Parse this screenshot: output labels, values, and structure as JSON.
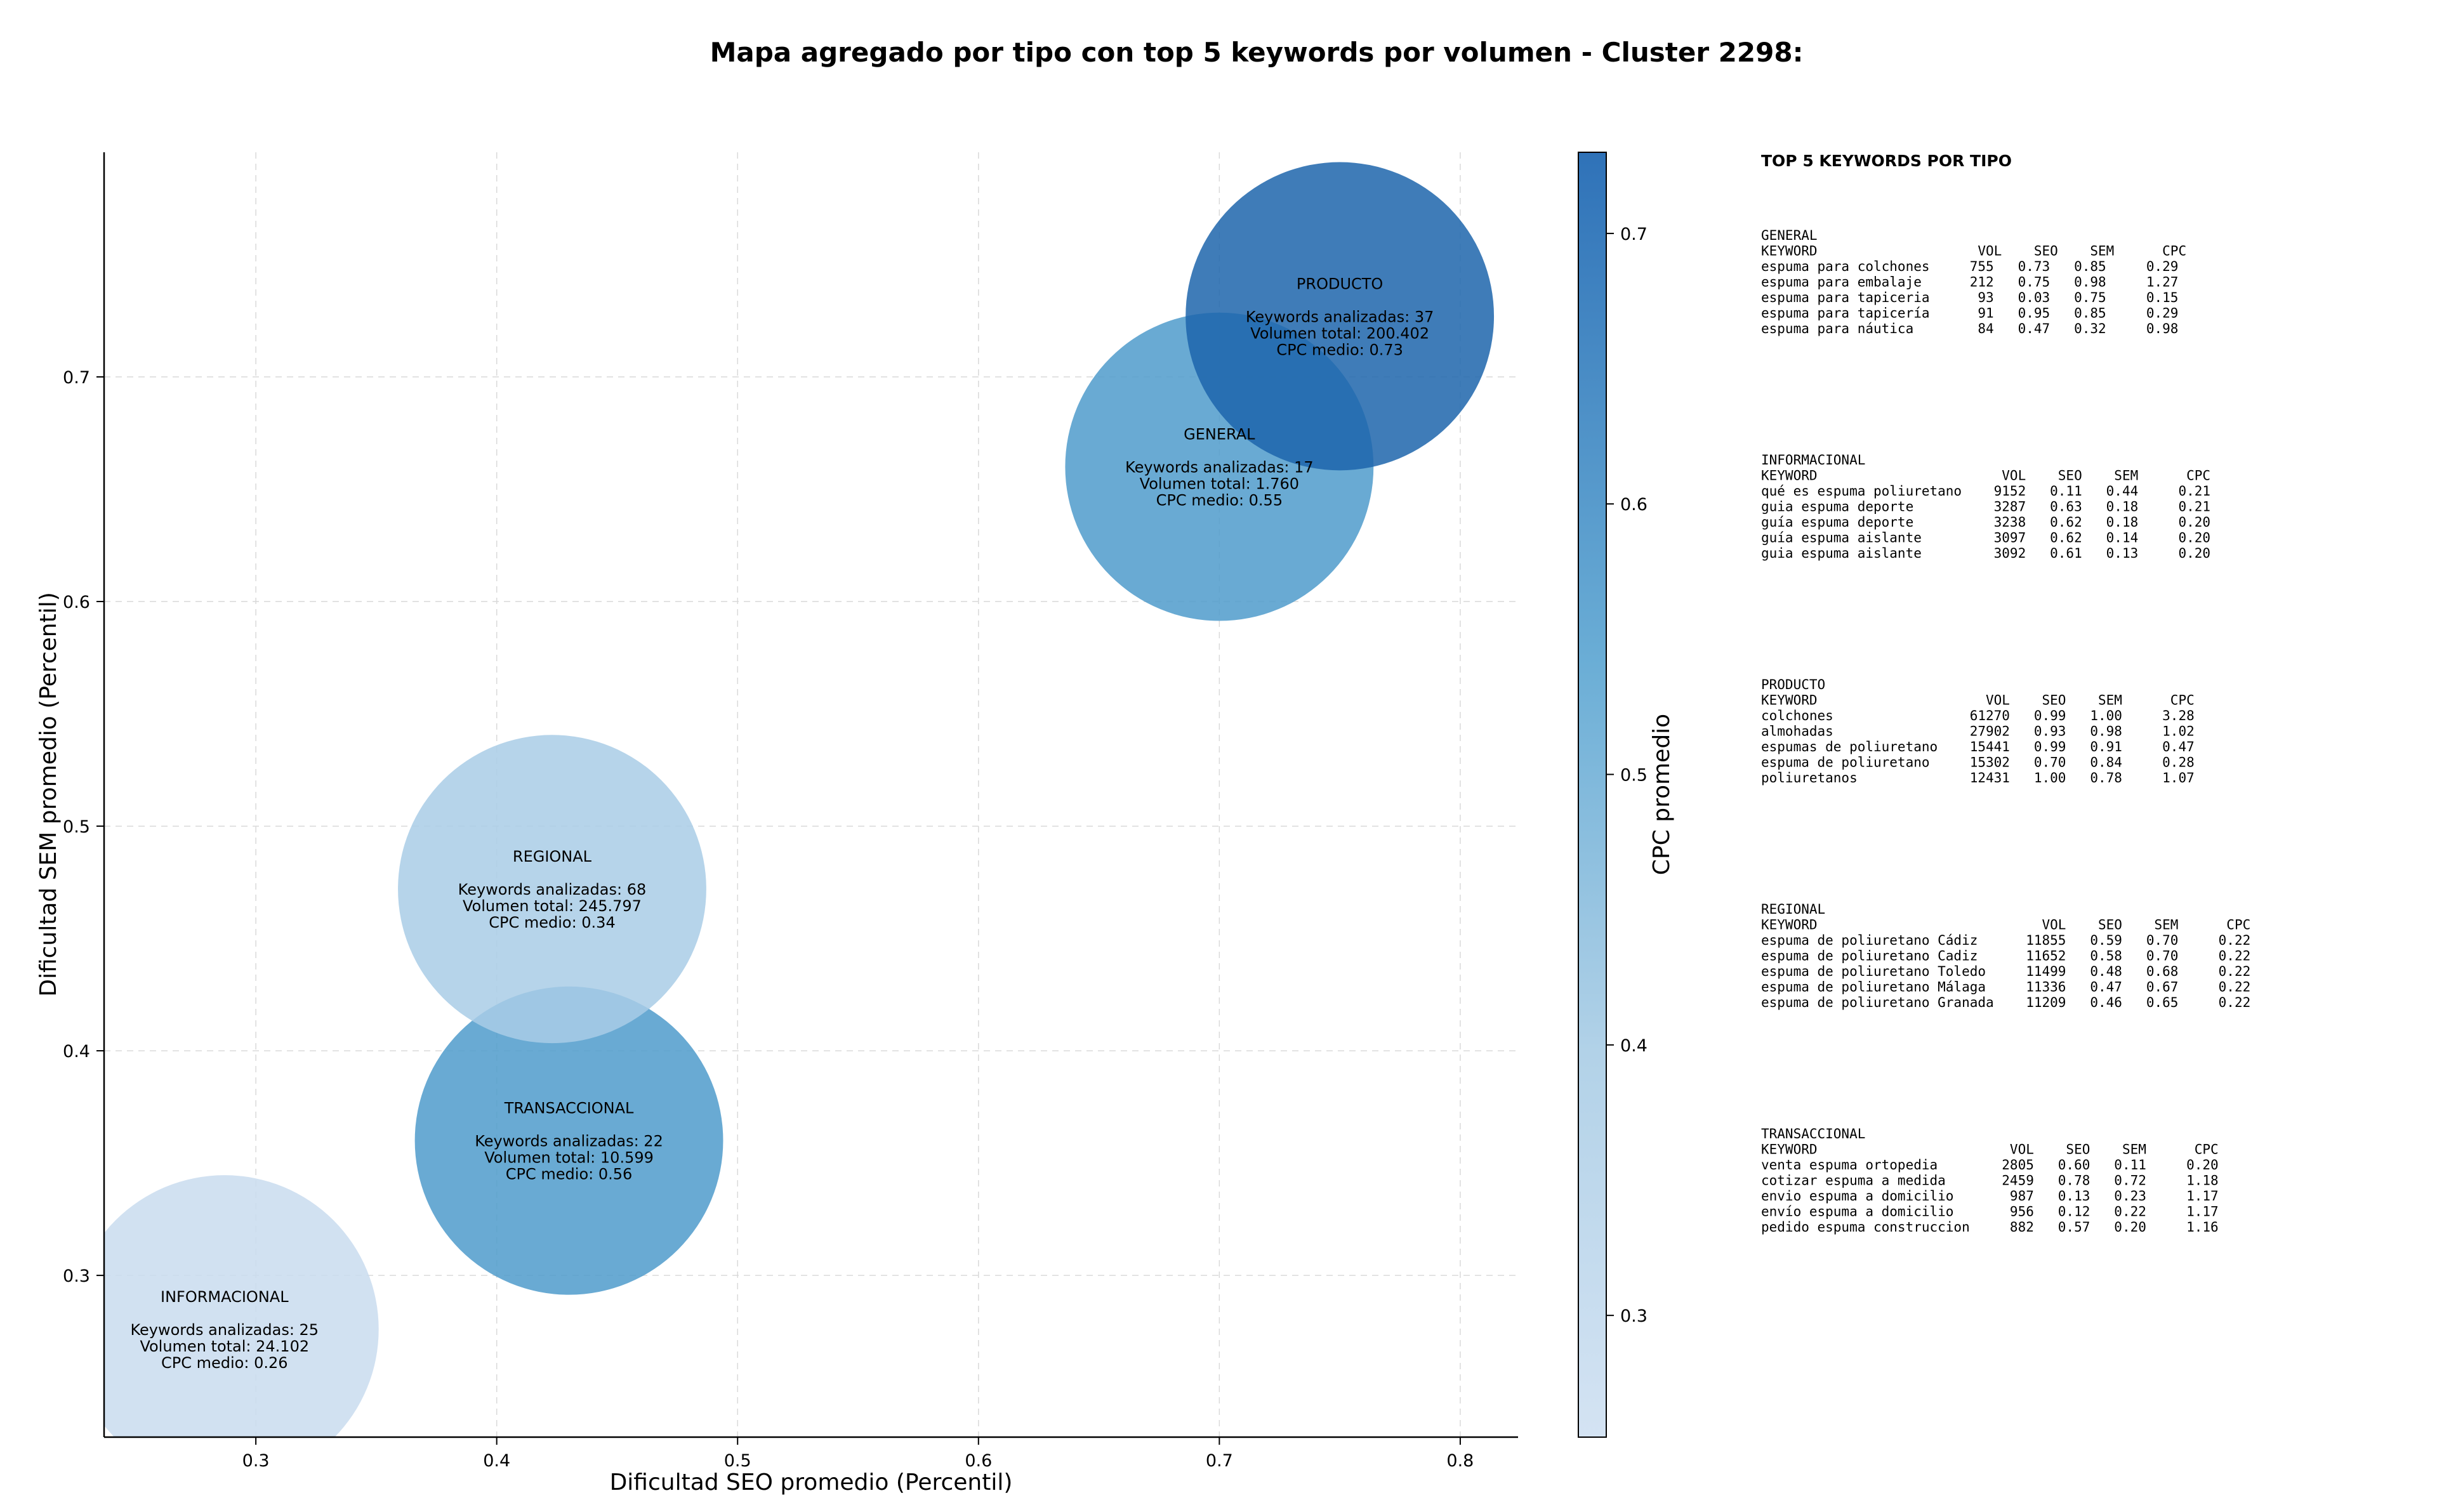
{
  "chart_data": {
    "type": "scatter",
    "title": "Mapa agregado por tipo con top 5 keywords por volumen - Cluster 2298:",
    "xlabel": "Dificultad SEO promedio (Percentil)",
    "ylabel": "Dificultad SEM promedio (Percentil)",
    "xlim": [
      0.237,
      0.824
    ],
    "ylim": [
      0.228,
      0.8
    ],
    "xticks": [
      "0.3",
      "0.4",
      "0.5",
      "0.6",
      "0.7",
      "0.8"
    ],
    "yticks": [
      "0.3",
      "0.4",
      "0.5",
      "0.6",
      "0.7"
    ],
    "grid": true,
    "colorbar": {
      "label": "CPC promedio",
      "range": [
        0.255,
        0.73
      ],
      "ticks": [
        "0.3",
        "0.4",
        "0.5",
        "0.6",
        "0.7"
      ]
    },
    "bubbles": [
      {
        "name": "INFORMACIONAL",
        "x": 0.287,
        "y": 0.276,
        "keywords_line": "Keywords analizadas: 25",
        "volume_line": "Volumen total: 24.102",
        "cpc_line": "CPC medio: 0.26",
        "cpc": 0.26,
        "color": "#c9dcef"
      },
      {
        "name": "TRANSACCIONAL",
        "x": 0.43,
        "y": 0.36,
        "keywords_line": "Keywords analizadas: 22",
        "volume_line": "Volumen total: 10.599",
        "cpc_line": "CPC medio: 0.56",
        "cpc": 0.56,
        "color": "#4f9bcb"
      },
      {
        "name": "REGIONAL",
        "x": 0.423,
        "y": 0.472,
        "keywords_line": "Keywords analizadas: 68",
        "volume_line": "Volumen total: 245.797",
        "cpc_line": "CPC medio: 0.34",
        "cpc": 0.34,
        "color": "#a9cde6"
      },
      {
        "name": "GENERAL",
        "x": 0.7,
        "y": 0.66,
        "keywords_line": "Keywords analizadas: 17",
        "volume_line": "Volumen total: 1.760",
        "cpc_line": "CPC medio: 0.55",
        "cpc": 0.55,
        "color": "#4f9bcb"
      },
      {
        "name": "PRODUCTO",
        "x": 0.75,
        "y": 0.727,
        "keywords_line": "Keywords analizadas: 37",
        "volume_line": "Volumen total: 200.402",
        "cpc_line": "CPC medio: 0.73",
        "cpc": 0.73,
        "color": "#1d65ac"
      }
    ]
  },
  "side_panel": {
    "title": "TOP 5 KEYWORDS POR TIPO",
    "groups": [
      {
        "name": "GENERAL",
        "lines": [
          "KEYWORD                    VOL    SEO    SEM      CPC",
          "espuma para colchones     755   0.73   0.85     0.29",
          "espuma para embalaje      212   0.75   0.98     1.27",
          "espuma para tapiceria      93   0.03   0.75     0.15",
          "espuma para tapicería      91   0.95   0.85     0.29",
          "espuma para náutica        84   0.47   0.32     0.98"
        ]
      },
      {
        "name": "INFORMACIONAL",
        "lines": [
          "KEYWORD                       VOL    SEO    SEM      CPC",
          "qué es espuma poliuretano    9152   0.11   0.44     0.21",
          "guia espuma deporte          3287   0.63   0.18     0.21",
          "guía espuma deporte          3238   0.62   0.18     0.20",
          "guía espuma aislante         3097   0.62   0.14     0.20",
          "guia espuma aislante         3092   0.61   0.13     0.20"
        ]
      },
      {
        "name": "PRODUCTO",
        "lines": [
          "KEYWORD                     VOL    SEO    SEM      CPC",
          "colchones                 61270   0.99   1.00     3.28",
          "almohadas                 27902   0.93   0.98     1.02",
          "espumas de poliuretano    15441   0.99   0.91     0.47",
          "espuma de poliuretano     15302   0.70   0.84     0.28",
          "poliuretanos              12431   1.00   0.78     1.07"
        ]
      },
      {
        "name": "REGIONAL",
        "lines": [
          "KEYWORD                            VOL    SEO    SEM      CPC",
          "espuma de poliuretano Cádiz      11855   0.59   0.70     0.22",
          "espuma de poliuretano Cadiz      11652   0.58   0.70     0.22",
          "espuma de poliuretano Toledo     11499   0.48   0.68     0.22",
          "espuma de poliuretano Málaga     11336   0.47   0.67     0.22",
          "espuma de poliuretano Granada    11209   0.46   0.65     0.22"
        ]
      },
      {
        "name": "TRANSACCIONAL",
        "lines": [
          "KEYWORD                        VOL    SEO    SEM      CPC",
          "venta espuma ortopedia        2805   0.60   0.11     0.20",
          "cotizar espuma a medida       2459   0.78   0.72     1.18",
          "envio espuma a domicilio       987   0.13   0.23     1.17",
          "envío espuma a domicilio       956   0.12   0.22     1.17",
          "pedido espuma construccion     882   0.57   0.20     1.16"
        ]
      }
    ]
  }
}
